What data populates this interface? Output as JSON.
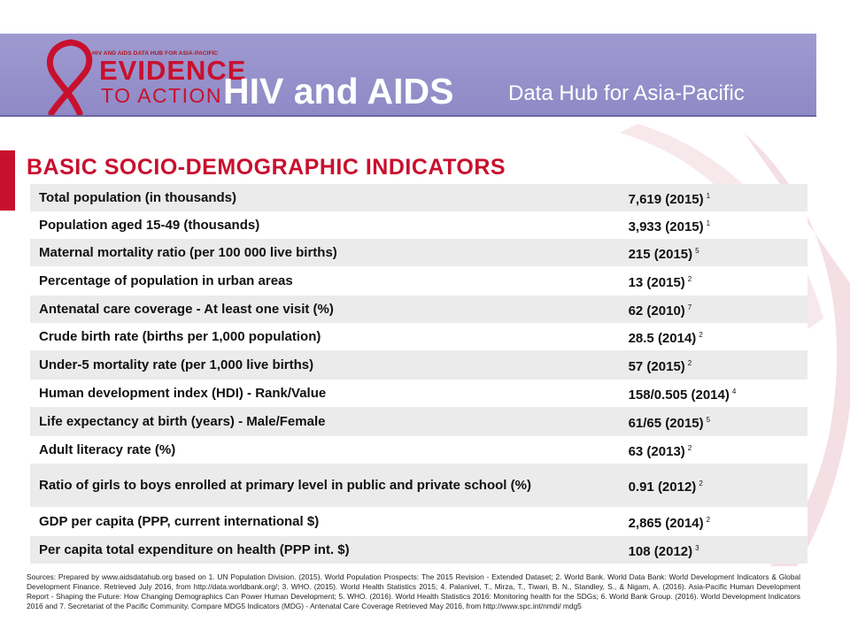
{
  "header": {
    "logo": {
      "tagline": "HIV AND AIDS DATA HUB FOR ASIA-PACIFIC",
      "line1": "EVIDENCE",
      "line2": "TO ACTION",
      "icon": "red-ribbon-icon",
      "color": "#c8102e"
    },
    "title": "HIV and AIDS",
    "subtitle": "Data Hub for Asia-Pacific",
    "banner_color": "#9893cb"
  },
  "section": {
    "title": "BASIC SOCIO-DEMOGRAPHIC INDICATORS",
    "accent_color": "#c8102e"
  },
  "indicators": [
    {
      "label": "Total population (in thousands)",
      "value": "7,619 (2015)",
      "ref": "1"
    },
    {
      "label": "Population aged 15-49 (thousands)",
      "value": "3,933 (2015)",
      "ref": "1"
    },
    {
      "label": "Maternal mortality ratio (per 100 000 live births)",
      "value": "215 (2015)",
      "ref": "5"
    },
    {
      "label": "Percentage of population in urban areas",
      "value": "13 (2015)",
      "ref": "2"
    },
    {
      "label": "Antenatal care coverage -  At least one visit (%)",
      "value": "62 (2010)",
      "ref": "7"
    },
    {
      "label": "Crude birth rate (births per 1,000 population)",
      "value": "28.5 (2014)",
      "ref": "2"
    },
    {
      "label": "Under-5 mortality rate (per 1,000 live births)",
      "value": "57 (2015)",
      "ref": "2"
    },
    {
      "label": "Human development index (HDI) - Rank/Value",
      "value": "158/0.505 (2014)",
      "ref": "4"
    },
    {
      "label": "Life expectancy at birth (years) - Male/Female",
      "value": "61/65 (2015)",
      "ref": "5"
    },
    {
      "label": "Adult literacy rate (%)",
      "value": "63 (2013)",
      "ref": "2"
    },
    {
      "label": "Ratio of girls to boys enrolled at primary level in public and private school (%)",
      "value": "0.91 (2012)",
      "ref": "2"
    },
    {
      "label": "GDP per capita (PPP, current international $)",
      "value": "2,865 (2014)",
      "ref": "2"
    },
    {
      "label": "Per capita total expenditure on health (PPP int. $)",
      "value": "108 (2012)",
      "ref": "3"
    }
  ],
  "sources": "Sources: Prepared by www.aidsdatahub.org based on 1. UN Population Division. (2015). World Population Prospects: The 2015 Revision - Extended Dataset; 2. World Bank. World Data Bank: World Development Indicators & Global Development Finance. Retrieved July 2016, from http://data.worldbank.org/; 3. WHO. (2015). World Health Statistics 2015; 4. Palanivel, T., Mirza, T., Tiwari, B. N., Standley, S., & Nigam, A. (2016). Asia-Pacific Human Development Report - Shaping the Future: How Changing Demographics Can Power Human Development; 5. WHO. (2016). World Health Statistics 2016: Monitoring health for the SDGs; 6. World Bank Group. (2016). World Development Indicators 2016 and 7. Secretariat of the Pacific Community. Compare MDG5 Indicators (MDG) - Antenatal Care Coverage Retrieved May 2016, from http://www.spc.int/nmdi/ mdg5"
}
